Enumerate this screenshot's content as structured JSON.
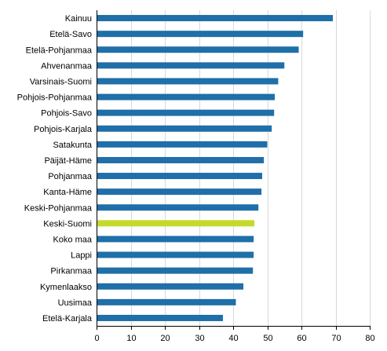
{
  "chart_data": {
    "type": "bar",
    "orientation": "horizontal",
    "title": "",
    "xlabel": "",
    "ylabel": "",
    "xlim": [
      0,
      80
    ],
    "xticks": [
      0,
      10,
      20,
      30,
      40,
      50,
      60,
      70,
      80
    ],
    "grid": "vertical",
    "legend": "none",
    "colors": {
      "default": "#1f6fa8",
      "highlight": "#c5d92b"
    },
    "highlight_category": "Keski-Suomi",
    "categories": [
      "Kainuu",
      "Etelä-Savo",
      "Etelä-Pohjanmaa",
      "Ahvenanmaa",
      "Varsinais-Suomi",
      "Pohjois-Pohjanmaa",
      "Pohjois-Savo",
      "Pohjois-Karjala",
      "Satakunta",
      "Päijät-Häme",
      "Pohjanmaa",
      "Kanta-Häme",
      "Keski-Pohjanmaa",
      "Keski-Suomi",
      "Koko maa",
      "Lappi",
      "Pirkanmaa",
      "Kymenlaakso",
      "Uusimaa",
      "Etelä-Karjala"
    ],
    "values": [
      69.2,
      60.5,
      59.2,
      55.0,
      53.2,
      52.2,
      52.0,
      51.3,
      50.0,
      49.0,
      48.5,
      48.3,
      47.4,
      46.2,
      46.0,
      46.0,
      45.8,
      43.0,
      40.8,
      37.0
    ]
  }
}
